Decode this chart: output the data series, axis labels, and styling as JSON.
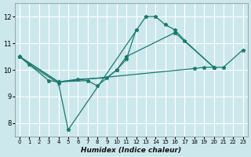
{
  "xlabel": "Humidex (Indice chaleur)",
  "bg_color": "#cce8ec",
  "grid_color": "#ffffff",
  "line_color": "#1a7a6e",
  "xlim": [
    -0.5,
    23.5
  ],
  "ylim": [
    7.5,
    12.5
  ],
  "yticks": [
    8,
    9,
    10,
    11,
    12
  ],
  "xticks": [
    0,
    1,
    2,
    3,
    4,
    5,
    6,
    7,
    8,
    9,
    10,
    11,
    12,
    13,
    14,
    15,
    16,
    17,
    18,
    19,
    20,
    21,
    22,
    23
  ],
  "series": [
    {
      "x": [
        0,
        1,
        4,
        5,
        13,
        14,
        15,
        16,
        17,
        20,
        21,
        23
      ],
      "y": [
        10.5,
        10.2,
        9.5,
        7.75,
        12.0,
        12.0,
        11.7,
        11.5,
        11.1,
        10.1,
        10.1,
        10.75
      ]
    },
    {
      "x": [
        0,
        3,
        4,
        7,
        8,
        10,
        11,
        16,
        20
      ],
      "y": [
        10.5,
        9.6,
        9.55,
        9.6,
        9.4,
        10.0,
        10.5,
        11.4,
        10.1
      ]
    },
    {
      "x": [
        0,
        4,
        6,
        9,
        10,
        11,
        12
      ],
      "y": [
        10.5,
        9.55,
        9.65,
        9.7,
        10.0,
        10.4,
        11.5
      ]
    },
    {
      "x": [
        0,
        4,
        18,
        19,
        20
      ],
      "y": [
        10.5,
        9.55,
        10.05,
        10.1,
        10.1
      ]
    }
  ]
}
